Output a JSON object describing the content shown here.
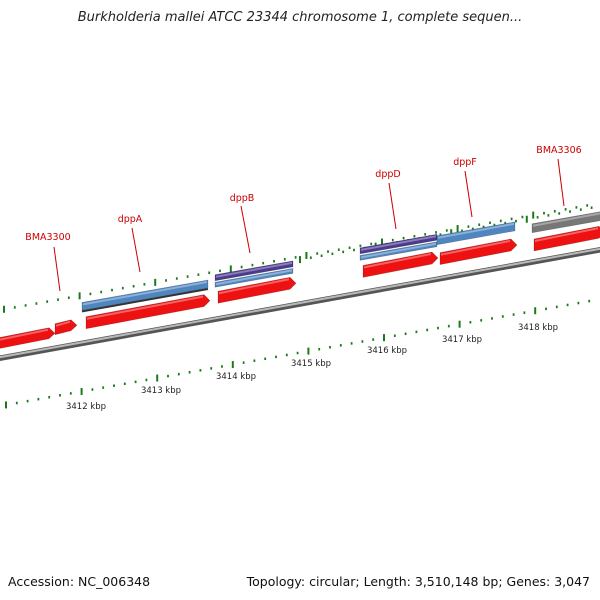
{
  "header": {
    "title": "Burkholderia mallei ATCC 23344 chromosome 1, complete sequen..."
  },
  "footer": {
    "accession": "Accession: NC_006348",
    "summary": "Topology: circular; Length: 3,510,148 bp; Genes: 3,047"
  },
  "colors": {
    "gene_red": "#ee1111",
    "gene_blue": "#4f86c0",
    "gene_purple": "#4b3a8e",
    "gene_grey": "#777777",
    "backbone": "#8c8c8c",
    "tick_green": "#1a7a1a",
    "label_red": "#cc0000"
  },
  "gene_labels": [
    {
      "name": "BMA3300"
    },
    {
      "name": "dppA"
    },
    {
      "name": "dppB"
    },
    {
      "name": "dppD"
    },
    {
      "name": "dppF"
    },
    {
      "name": "BMA3306"
    }
  ],
  "kbp_labels": [
    "3412 kbp",
    "3413 kbp",
    "3414 kbp",
    "3415 kbp",
    "3416 kbp",
    "3417 kbp",
    "3418 kbp"
  ]
}
